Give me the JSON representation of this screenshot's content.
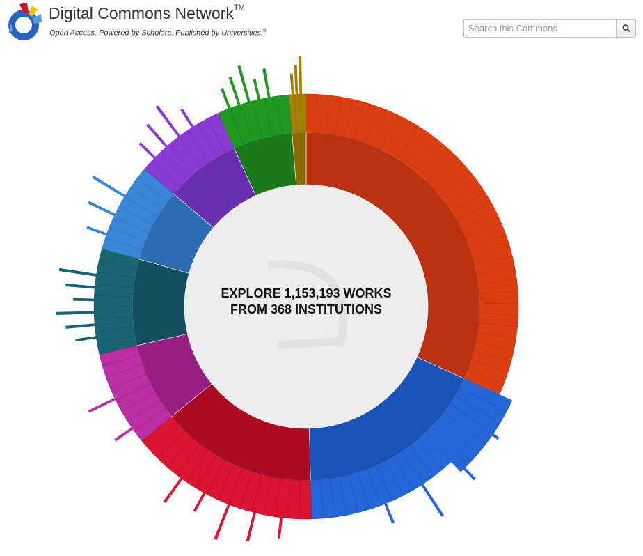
{
  "header": {
    "title": "Digital Commons Network",
    "trademark": "TM",
    "tagline": "Open Access. Powered by Scholars. Published by Universities.",
    "tagline_mark": "®"
  },
  "search": {
    "placeholder": "Search this Commons"
  },
  "explore": {
    "line1": "EXPLORE 1,153,193 WORKS",
    "line2": "FROM 368 INSTITUTIONS"
  },
  "chart_data": {
    "type": "sunburst",
    "segments": [
      {
        "color": "#bb3210",
        "outer": "#dc3e12",
        "share": 0.318,
        "spikes": 0
      },
      {
        "color": "#1b52b5",
        "outer": "#2567d9",
        "share": 0.178,
        "spikes": 4
      },
      {
        "color": "#a80b22",
        "outer": "#db1432",
        "share": 0.145,
        "spikes": 5
      },
      {
        "color": "#982085",
        "outer": "#bb2ea4",
        "share": 0.073,
        "spikes": 2
      },
      {
        "color": "#134f5e",
        "outer": "#1a6575",
        "share": 0.08,
        "spikes": 6
      },
      {
        "color": "#2d6cb4",
        "outer": "#3a86d6",
        "share": 0.068,
        "spikes": 3
      },
      {
        "color": "#6830b0",
        "outer": "#8a3ad4",
        "share": 0.07,
        "spikes": 4
      },
      {
        "color": "#1a7a1a",
        "outer": "#1f9920",
        "share": 0.055,
        "spikes": 5
      },
      {
        "color": "#8a6a05",
        "outer": "#a67f06",
        "share": 0.013,
        "spikes": 3
      }
    ]
  }
}
